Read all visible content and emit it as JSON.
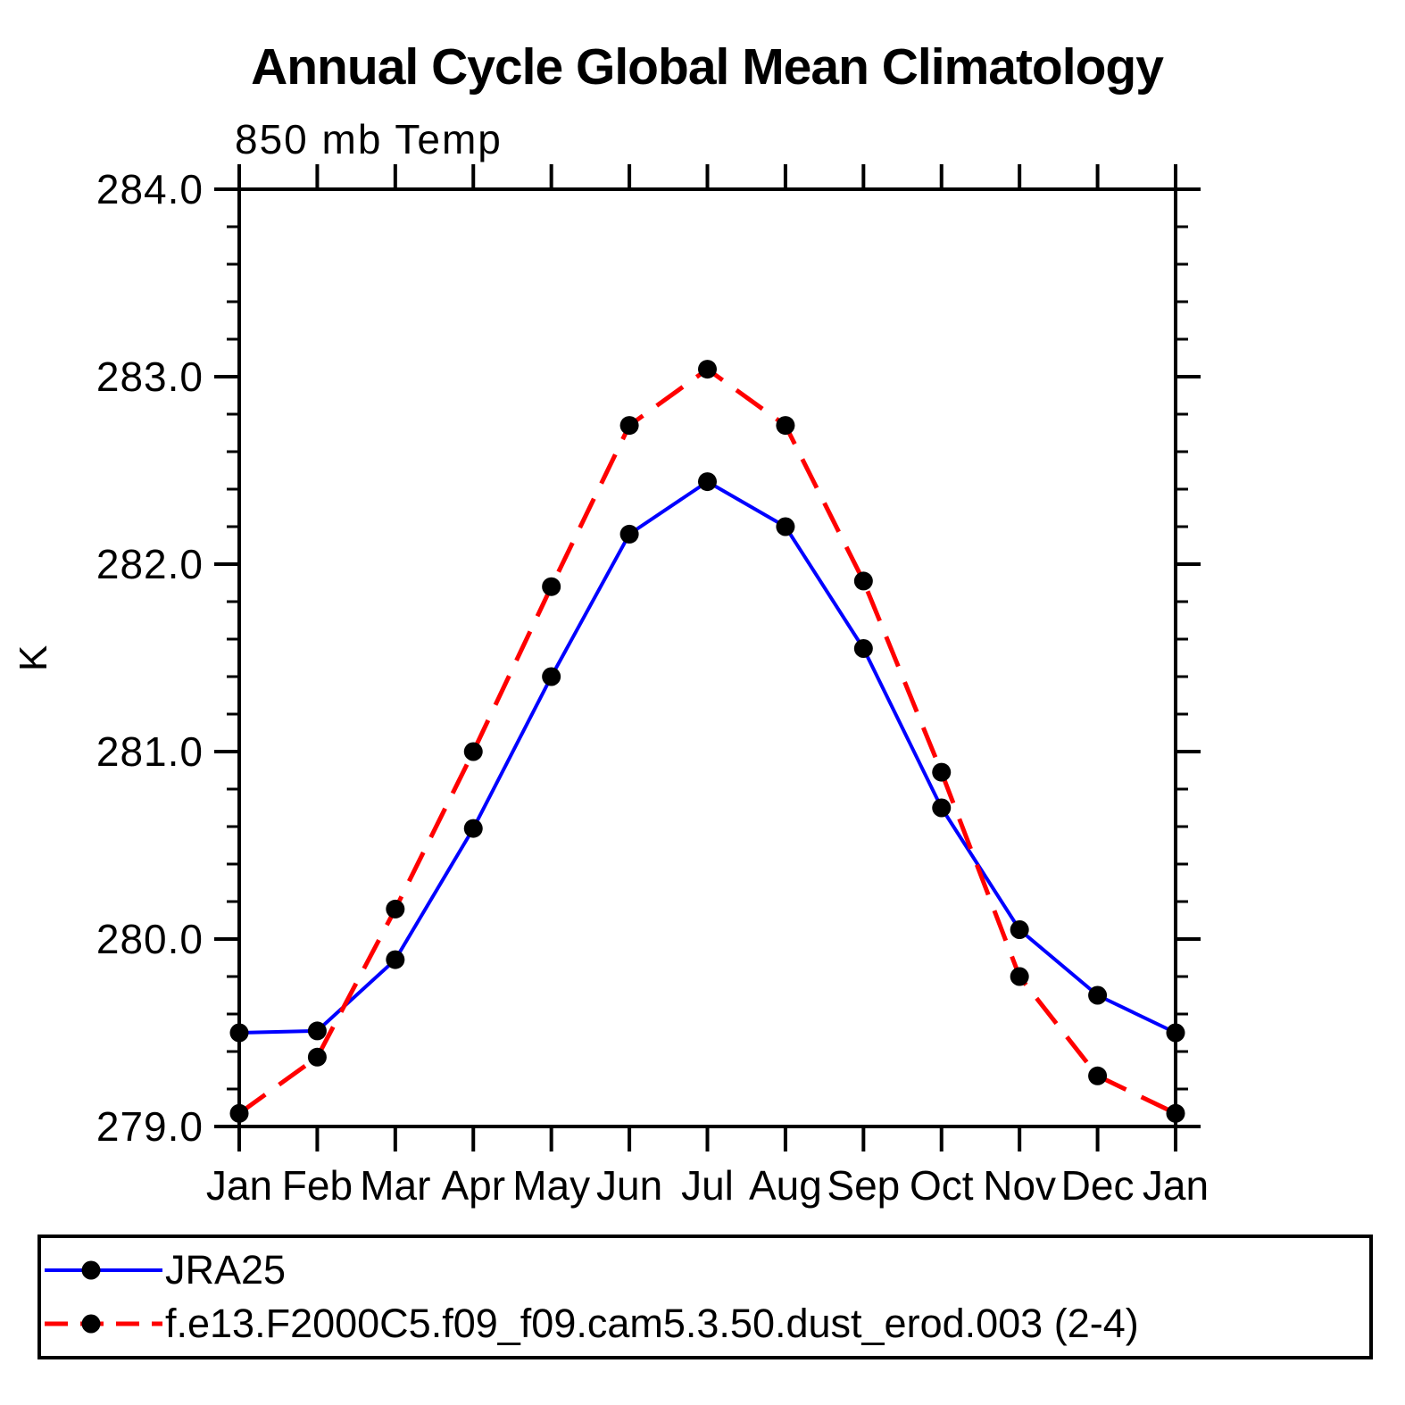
{
  "title": "Annual Cycle Global Mean Climatology",
  "subtitle": "850 mb Temp",
  "ylabel": "K",
  "background_color": "#ffffff",
  "axis_color": "#000000",
  "text_color": "#000000",
  "chart_data": {
    "type": "line",
    "categories": [
      "Jan",
      "Feb",
      "Mar",
      "Apr",
      "May",
      "Jun",
      "Jul",
      "Aug",
      "Sep",
      "Oct",
      "Nov",
      "Dec",
      "Jan"
    ],
    "xlabel": "",
    "ylabel": "K",
    "ylim": [
      279.0,
      284.0
    ],
    "ytick_major_step": 1.0,
    "ytick_minor_step": 0.2,
    "ytick_labels": [
      "279.0",
      "280.0",
      "281.0",
      "282.0",
      "283.0",
      "284.0"
    ],
    "grid": false,
    "legend_position": "bottom",
    "series": [
      {
        "name": "JRA25",
        "color": "#0000ff",
        "line_style": "solid",
        "marker": "circle",
        "marker_color": "#000000",
        "values": [
          279.5,
          279.51,
          279.89,
          280.59,
          281.4,
          282.16,
          282.44,
          282.2,
          281.55,
          280.7,
          280.05,
          279.7,
          279.5
        ]
      },
      {
        "name": "f.e13.F2000C5.f09_f09.cam5.3.50.dust_erod.003 (2-4)",
        "color": "#ff0000",
        "line_style": "dashed",
        "marker": "circle",
        "marker_color": "#000000",
        "values": [
          279.07,
          279.37,
          280.16,
          281.0,
          281.88,
          282.74,
          283.04,
          282.74,
          281.91,
          280.89,
          279.8,
          279.27,
          279.07
        ]
      }
    ]
  }
}
